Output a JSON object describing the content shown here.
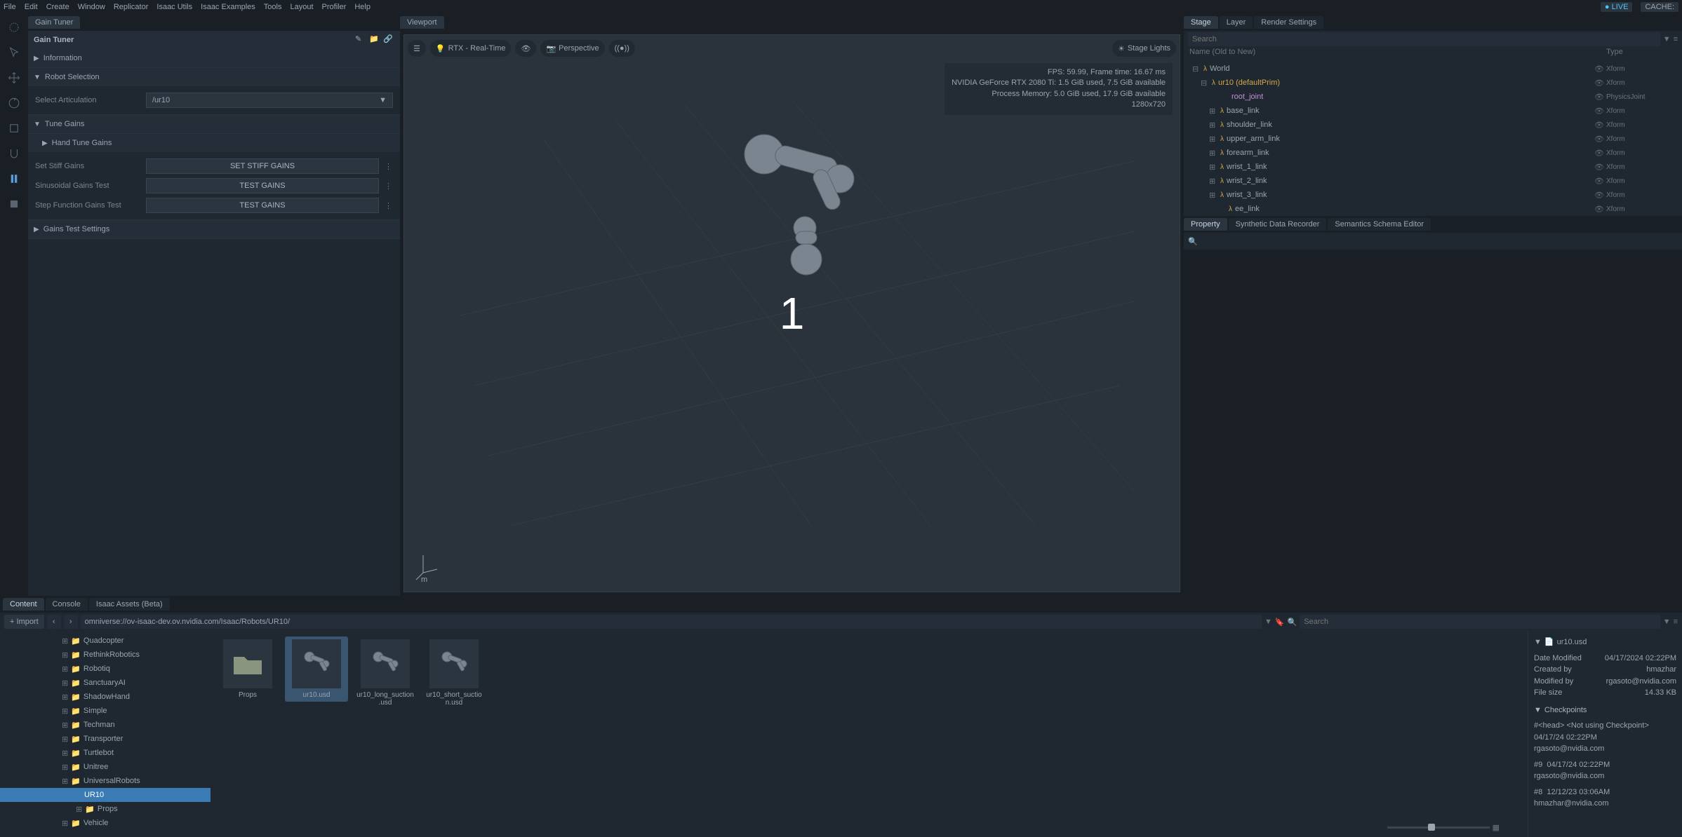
{
  "menubar": [
    "File",
    "Edit",
    "Create",
    "Window",
    "Replicator",
    "Isaac Utils",
    "Isaac Examples",
    "Tools",
    "Layout",
    "Profiler",
    "Help"
  ],
  "live_badge": "● LIVE",
  "cache_badge": "CACHE:",
  "left_panel": {
    "tab": "Gain Tuner",
    "title": "Gain Tuner",
    "sections": {
      "information": "Information",
      "robot_selection": "Robot Selection",
      "select_articulation": "Select Articulation",
      "articulation_value": "/ur10",
      "tune_gains": "Tune Gains",
      "hand_tune_gains": "Hand Tune Gains",
      "set_stiff_gains_label": "Set Stiff Gains",
      "set_stiff_gains_btn": "SET STIFF GAINS",
      "sinusoidal_label": "Sinusoidal Gains Test",
      "step_func_label": "Step Function Gains Test",
      "test_gains_btn": "TEST GAINS",
      "gains_test_settings": "Gains Test Settings"
    }
  },
  "viewport": {
    "tab": "Viewport",
    "rtx_mode": "RTX - Real-Time",
    "camera": "Perspective",
    "stage_lights": "Stage Lights",
    "stats": {
      "fps": "FPS: 59.99, Frame time: 16.67 ms",
      "gpu": "NVIDIA GeForce RTX 2080 Ti: 1.5 GiB used, 7.5 GiB available",
      "mem": "Process Memory: 5.0 GiB used, 17.9 GiB available",
      "res": "1280x720"
    },
    "center_num": "1",
    "axis_unit": "m"
  },
  "stage": {
    "tabs": [
      "Stage",
      "Layer",
      "Render Settings"
    ],
    "search_placeholder": "Search",
    "name_header": "Name (Old to New)",
    "type_header": "Type",
    "tree": [
      {
        "indent": 12,
        "expand": "⊟",
        "icon": "λ",
        "label": "World",
        "type": "Xform"
      },
      {
        "indent": 24,
        "expand": "⊟",
        "icon": "λ",
        "label": "ur10 (defaultPrim)",
        "type": "Xform",
        "color": "#d4a84b"
      },
      {
        "indent": 48,
        "expand": "",
        "icon": "",
        "label": "root_joint",
        "type": "PhysicsJoint",
        "color": "#c48fdc"
      },
      {
        "indent": 36,
        "expand": "⊞",
        "icon": "λ",
        "label": "base_link",
        "type": "Xform"
      },
      {
        "indent": 36,
        "expand": "⊞",
        "icon": "λ",
        "label": "shoulder_link",
        "type": "Xform"
      },
      {
        "indent": 36,
        "expand": "⊞",
        "icon": "λ",
        "label": "upper_arm_link",
        "type": "Xform"
      },
      {
        "indent": 36,
        "expand": "⊞",
        "icon": "λ",
        "label": "forearm_link",
        "type": "Xform"
      },
      {
        "indent": 36,
        "expand": "⊞",
        "icon": "λ",
        "label": "wrist_1_link",
        "type": "Xform"
      },
      {
        "indent": 36,
        "expand": "⊞",
        "icon": "λ",
        "label": "wrist_2_link",
        "type": "Xform"
      },
      {
        "indent": 36,
        "expand": "⊞",
        "icon": "λ",
        "label": "wrist_3_link",
        "type": "Xform"
      },
      {
        "indent": 48,
        "expand": "",
        "icon": "λ",
        "label": "ee_link",
        "type": "Xform"
      }
    ]
  },
  "property": {
    "tabs": [
      "Property",
      "Synthetic Data Recorder",
      "Semantics Schema Editor"
    ],
    "search_glyph": "🔍"
  },
  "content": {
    "tabs": [
      "Content",
      "Console",
      "Isaac Assets (Beta)"
    ],
    "import": "+ Import",
    "path": "omniverse://ov-isaac-dev.ov.nvidia.com/Isaac/Robots/UR10/",
    "folders": [
      {
        "label": "Quadcopter"
      },
      {
        "label": "RethinkRobotics"
      },
      {
        "label": "Robotiq"
      },
      {
        "label": "SanctuaryAI"
      },
      {
        "label": "ShadowHand"
      },
      {
        "label": "Simple"
      },
      {
        "label": "Techman"
      },
      {
        "label": "Transporter"
      },
      {
        "label": "Turtlebot"
      },
      {
        "label": "Unitree"
      },
      {
        "label": "UniversalRobots"
      }
    ],
    "selected_folder": "UR10",
    "props_folder": "Props",
    "vehicle_folder": "Vehicle",
    "thumbs": [
      {
        "label": "Props",
        "kind": "folder"
      },
      {
        "label": "ur10.usd",
        "kind": "file",
        "selected": true
      },
      {
        "label": "ur10_long_suction.usd",
        "kind": "file"
      },
      {
        "label": "ur10_short_suction.usd",
        "kind": "file"
      }
    ],
    "details": {
      "filename": "ur10.usd",
      "date_modified_label": "Date Modified",
      "date_modified": "04/17/2024 02:22PM",
      "created_by_label": "Created by",
      "created_by": "hmazhar",
      "modified_by_label": "Modified by",
      "modified_by": "rgasoto@nvidia.com",
      "file_size_label": "File size",
      "file_size": "14.33 KB",
      "checkpoints": "Checkpoints",
      "cp_head": "#<head>    <Not using Checkpoint>",
      "cp1_date": "04/17/24 02:22PM",
      "cp1_user": "rgasoto@nvidia.com",
      "cp2_num": "#9",
      "cp2_date": "04/17/24 02:22PM",
      "cp2_user": "rgasoto@nvidia.com",
      "cp3_num": "#8",
      "cp3_date": "12/12/23 03:06AM",
      "cp3_user": "hmazhar@nvidia.com"
    }
  },
  "colors": {
    "accent_orange": "#d4a84b",
    "accent_blue": "#4fc3f7",
    "selection": "#3a7ab5"
  }
}
